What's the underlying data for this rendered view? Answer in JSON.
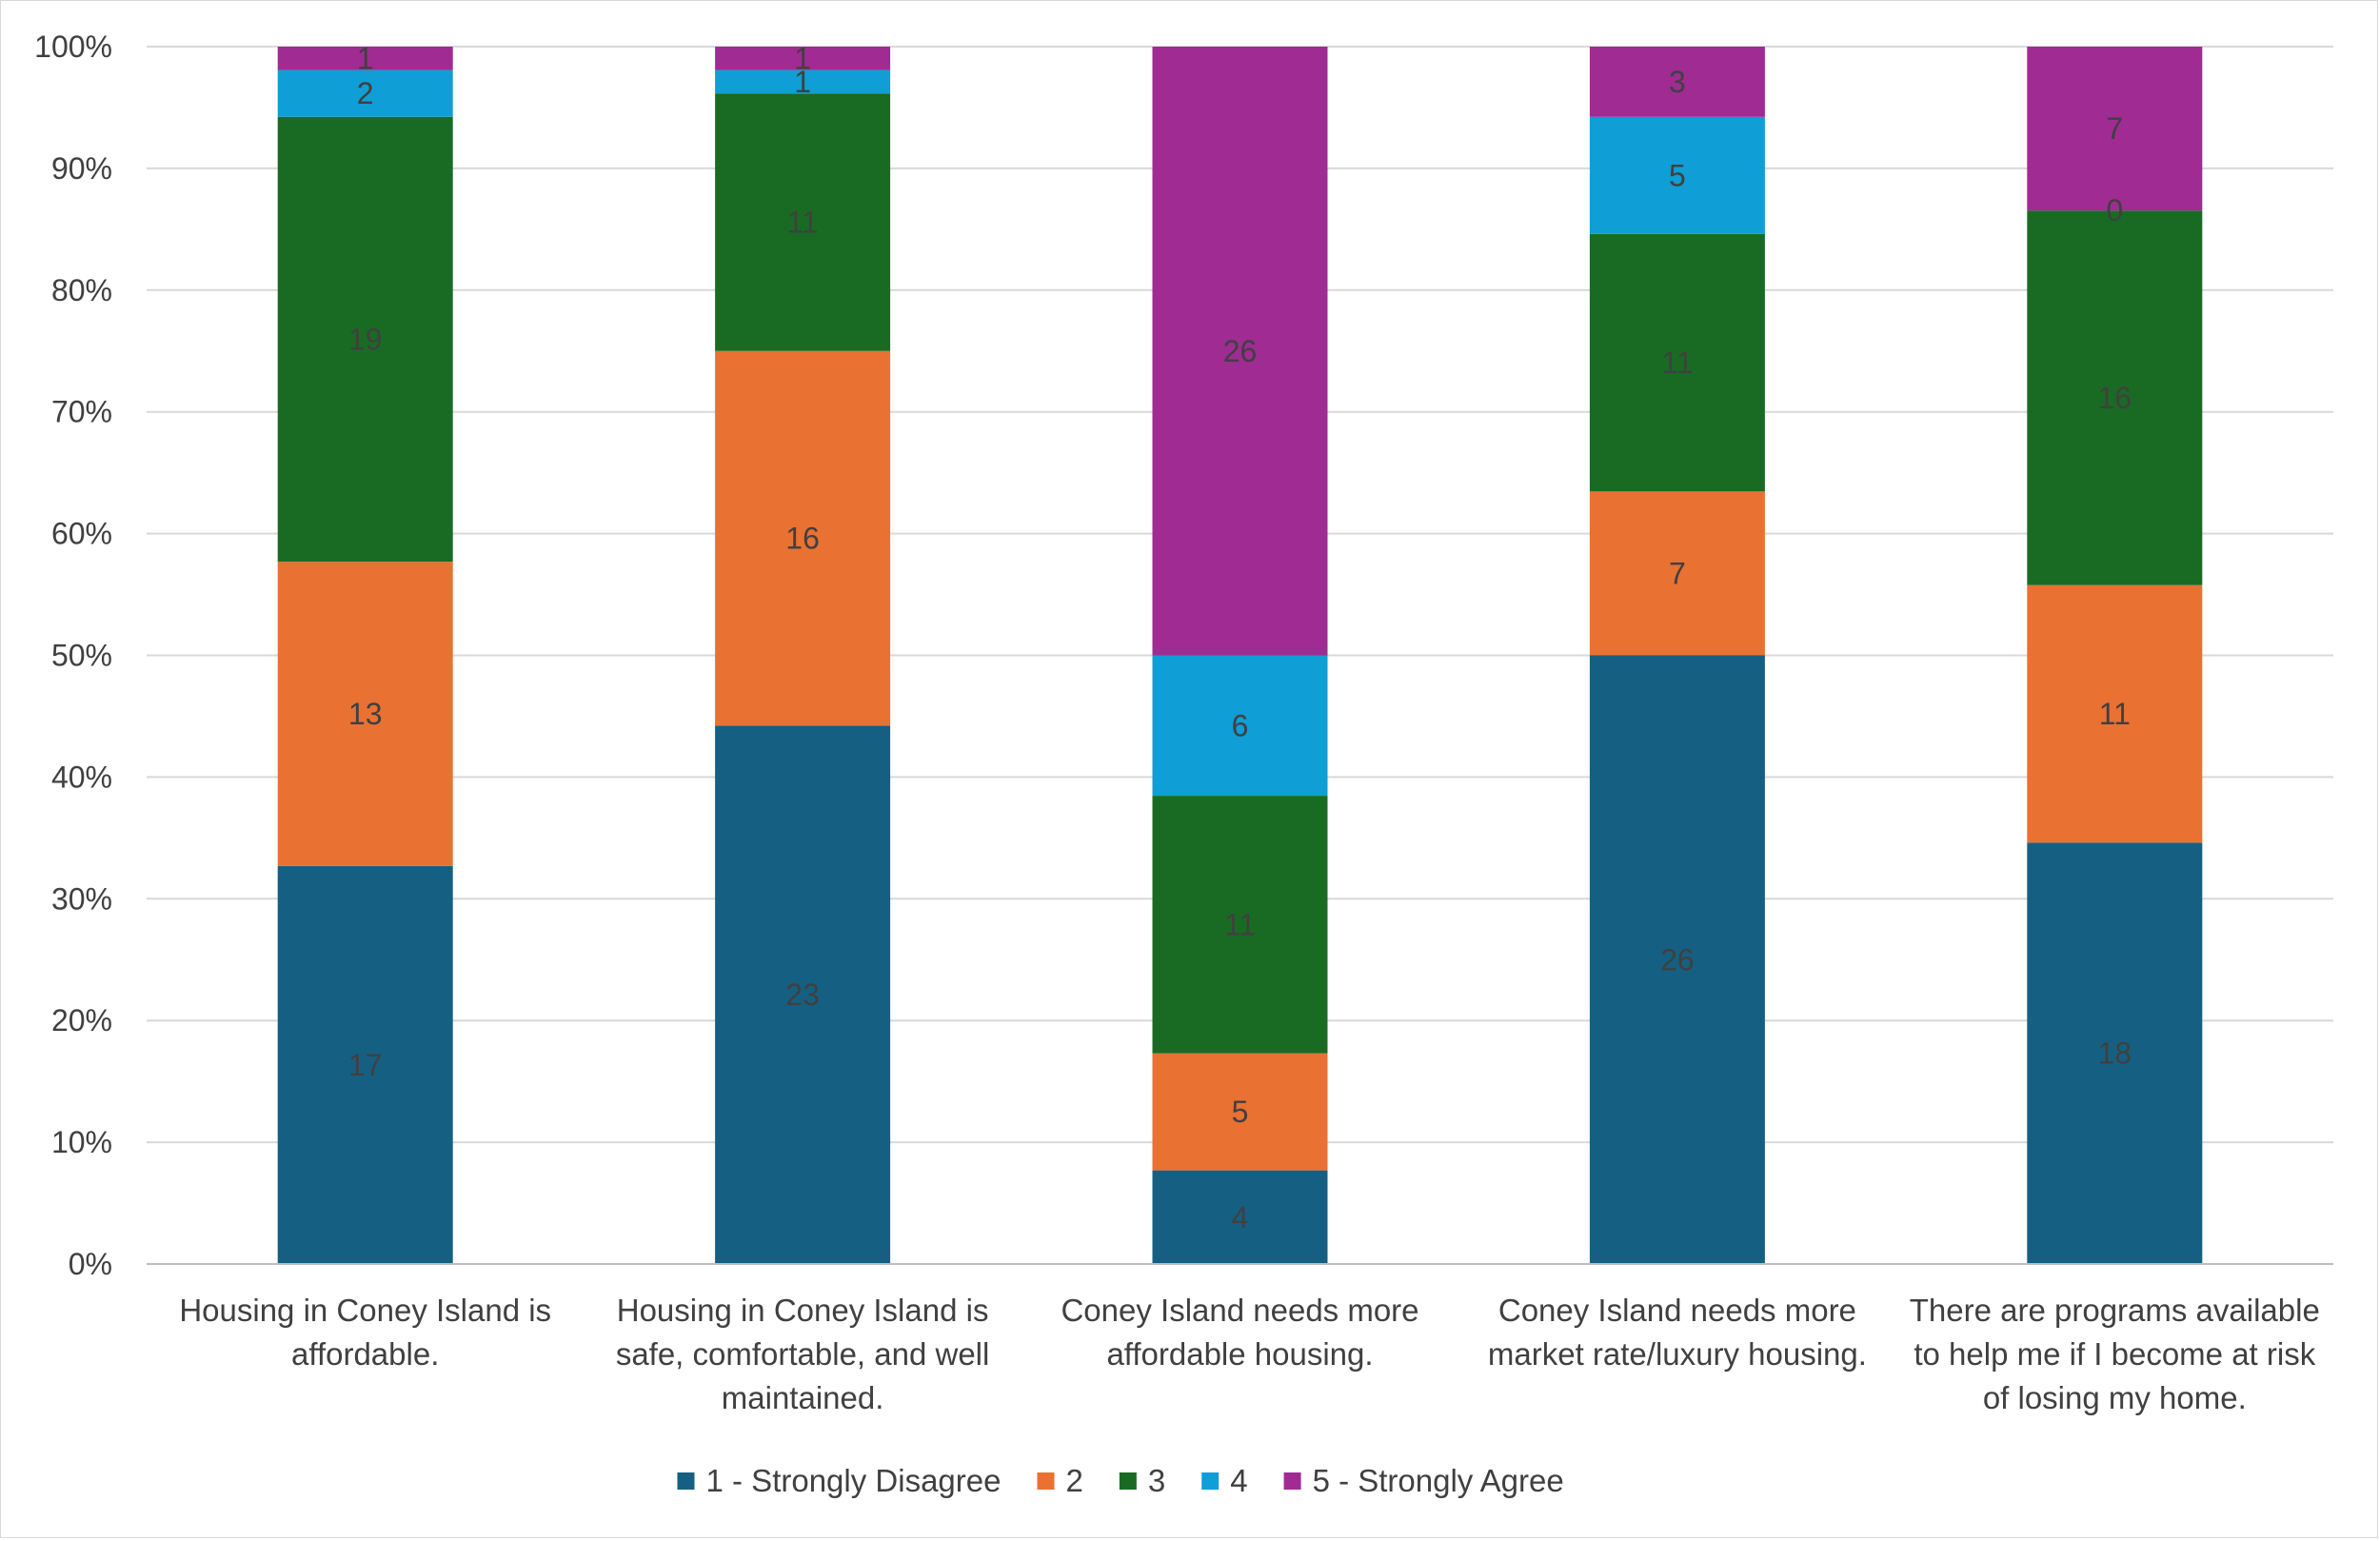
{
  "chart_data": {
    "type": "bar",
    "stacked": "percent",
    "title": "",
    "xlabel": "",
    "ylabel": "",
    "ylim": [
      0,
      100
    ],
    "y_ticks": [
      "0%",
      "10%",
      "20%",
      "30%",
      "40%",
      "50%",
      "60%",
      "70%",
      "80%",
      "90%",
      "100%"
    ],
    "grid": true,
    "legend_position": "bottom",
    "categories": [
      [
        "Housing in Coney Island is",
        "affordable."
      ],
      [
        "Housing in Coney Island is",
        "safe, comfortable, and well",
        "maintained."
      ],
      [
        "Coney Island needs more",
        "affordable housing."
      ],
      [
        "Coney Island needs more",
        "market rate/luxury housing."
      ],
      [
        "There are programs available",
        "to help me if I become at risk",
        "of losing my home."
      ]
    ],
    "series": [
      {
        "name": "1 - Strongly Disagree",
        "color": "#156082",
        "values": [
          17,
          23,
          4,
          26,
          18
        ]
      },
      {
        "name": "2",
        "color": "#E97132",
        "values": [
          13,
          16,
          5,
          7,
          11
        ]
      },
      {
        "name": "3",
        "color": "#196B24",
        "values": [
          19,
          11,
          11,
          11,
          16
        ]
      },
      {
        "name": "4",
        "color": "#0F9ED5",
        "values": [
          2,
          1,
          6,
          5,
          0
        ]
      },
      {
        "name": "5 - Strongly Agree",
        "color": "#A02B93",
        "values": [
          1,
          1,
          26,
          3,
          7
        ]
      }
    ],
    "colors": {
      "grid": "#d9d9d9",
      "axis": "#bfbfbf",
      "text": "#404040"
    }
  }
}
